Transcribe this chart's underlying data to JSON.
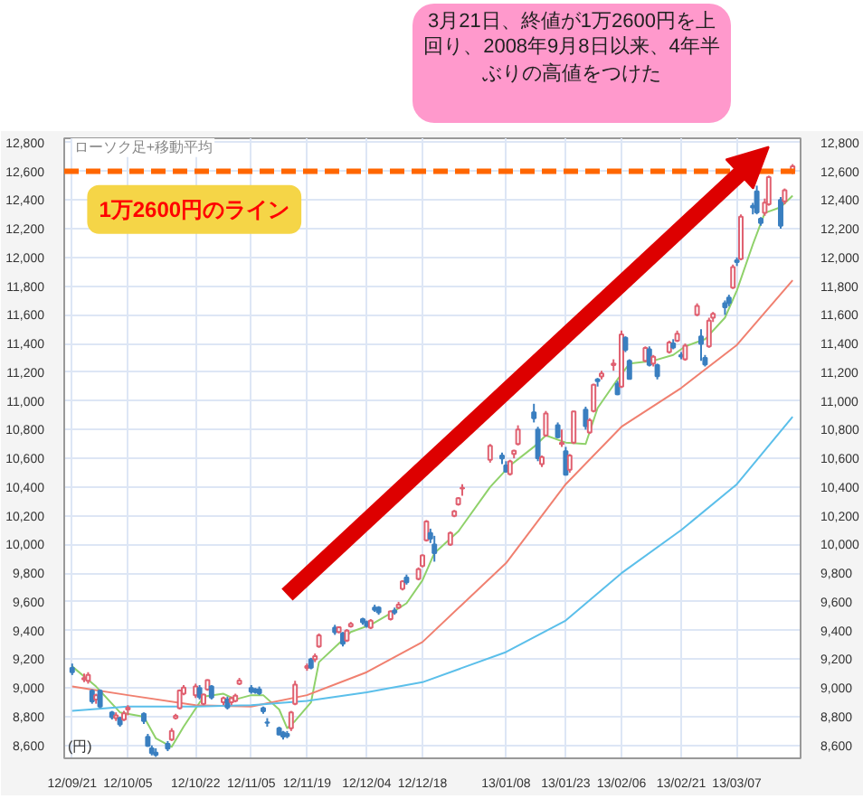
{
  "chart_data": {
    "type": "candlestick",
    "ylabel": "(円)",
    "annotations": [
      "ローソク足+移動平均",
      "3月21日、終値が1万2600円を上回り、2008年9月8日以来、4年半ぶりの高値をつけた"
    ],
    "x": [
      "2012-09-21",
      "2012-09-24",
      "2012-09-25",
      "2012-09-26",
      "2012-09-27",
      "2012-09-28",
      "2012-10-01",
      "2012-10-02",
      "2012-10-03",
      "2012-10-04",
      "2012-10-05",
      "2012-10-09",
      "2012-10-10",
      "2012-10-11",
      "2012-10-12",
      "2012-10-15",
      "2012-10-16",
      "2012-10-17",
      "2012-10-18",
      "2012-10-19",
      "2012-10-22",
      "2012-10-23",
      "2012-10-24",
      "2012-10-25",
      "2012-10-26",
      "2012-10-29",
      "2012-10-30",
      "2012-10-31",
      "2012-11-01",
      "2012-11-02",
      "2012-11-05",
      "2012-11-06",
      "2012-11-07",
      "2012-11-08",
      "2012-11-09",
      "2012-11-12",
      "2012-11-13",
      "2012-11-14",
      "2012-11-15",
      "2012-11-16",
      "2012-11-19",
      "2012-11-20",
      "2012-11-21",
      "2012-11-22",
      "2012-11-26",
      "2012-11-27",
      "2012-11-28",
      "2012-11-29",
      "2012-11-30",
      "2012-12-03",
      "2012-12-04",
      "2012-12-05",
      "2012-12-06",
      "2012-12-07",
      "2012-12-10",
      "2012-12-11",
      "2012-12-12",
      "2012-12-13",
      "2012-12-14",
      "2012-12-17",
      "2012-12-18",
      "2012-12-19",
      "2012-12-20",
      "2012-12-21",
      "2012-12-25",
      "2012-12-26",
      "2012-12-27",
      "2012-12-28",
      "2013-01-04",
      "2013-01-07",
      "2013-01-08",
      "2013-01-09",
      "2013-01-10",
      "2013-01-11",
      "2013-01-15",
      "2013-01-16",
      "2013-01-17",
      "2013-01-18",
      "2013-01-21",
      "2013-01-22",
      "2013-01-23",
      "2013-01-24",
      "2013-01-25",
      "2013-01-28",
      "2013-01-29",
      "2013-01-30",
      "2013-01-31",
      "2013-02-01",
      "2013-02-04",
      "2013-02-05",
      "2013-02-06",
      "2013-02-07",
      "2013-02-08",
      "2013-02-12",
      "2013-02-13",
      "2013-02-14",
      "2013-02-15",
      "2013-02-18",
      "2013-02-19",
      "2013-02-20",
      "2013-02-21",
      "2013-02-22",
      "2013-02-25",
      "2013-02-26",
      "2013-02-27",
      "2013-02-28",
      "2013-03-01",
      "2013-03-04",
      "2013-03-05",
      "2013-03-06",
      "2013-03-07",
      "2013-03-08",
      "2013-03-11",
      "2013-03-12",
      "2013-03-13",
      "2013-03-14",
      "2013-03-15",
      "2013-03-18",
      "2013-03-19",
      "2013-03-21"
    ],
    "ohlc": [
      [
        9140,
        9170,
        9090,
        9110
      ],
      [
        9060,
        9100,
        9040,
        9069
      ],
      [
        9050,
        9110,
        9030,
        9091
      ],
      [
        8980,
        8990,
        8890,
        8906
      ],
      [
        8920,
        8960,
        8890,
        8949
      ],
      [
        8980,
        8990,
        8860,
        8870
      ],
      [
        8830,
        8840,
        8780,
        8797
      ],
      [
        8790,
        8830,
        8770,
        8809
      ],
      [
        8790,
        8800,
        8730,
        8746
      ],
      [
        8780,
        8840,
        8770,
        8824
      ],
      [
        8850,
        8880,
        8810,
        8863
      ],
      [
        8820,
        8830,
        8750,
        8769
      ],
      [
        8660,
        8680,
        8590,
        8596
      ],
      [
        8580,
        8600,
        8530,
        8546
      ],
      [
        8550,
        8580,
        8520,
        8534
      ],
      [
        8610,
        8630,
        8560,
        8577
      ],
      [
        8640,
        8720,
        8630,
        8701
      ],
      [
        8790,
        8820,
        8780,
        8806
      ],
      [
        8860,
        8990,
        8850,
        8982
      ],
      [
        8960,
        9020,
        8950,
        9002
      ],
      [
        8950,
        9030,
        8930,
        9010
      ],
      [
        9000,
        9020,
        8920,
        8936
      ],
      [
        8890,
        8960,
        8880,
        8954
      ],
      [
        8990,
        9060,
        8980,
        9055
      ],
      [
        9010,
        9020,
        8920,
        8933
      ],
      [
        8900,
        8940,
        8880,
        8929
      ],
      [
        8920,
        8940,
        8850,
        8865
      ],
      [
        8900,
        8940,
        8880,
        8928
      ],
      [
        8910,
        8960,
        8900,
        8946
      ],
      [
        9030,
        9070,
        9020,
        9051
      ],
      [
        9000,
        9020,
        8960,
        8975
      ],
      [
        8990,
        9000,
        8960,
        8972
      ],
      [
        8990,
        9010,
        8950,
        8964
      ],
      [
        8860,
        8870,
        8820,
        8837
      ],
      [
        8760,
        8790,
        8730,
        8757
      ],
      [
        8720,
        8730,
        8670,
        8676
      ],
      [
        8690,
        8700,
        8640,
        8661
      ],
      [
        8680,
        8700,
        8650,
        8664
      ],
      [
        8720,
        8840,
        8700,
        8829
      ],
      [
        8890,
        9050,
        8880,
        9024
      ],
      [
        9140,
        9170,
        9120,
        9153
      ],
      [
        9200,
        9210,
        9130,
        9142
      ],
      [
        9200,
        9240,
        9180,
        9222
      ],
      [
        9290,
        9380,
        9280,
        9366
      ],
      [
        9420,
        9440,
        9370,
        9388
      ],
      [
        9390,
        9430,
        9380,
        9423
      ],
      [
        9380,
        9390,
        9290,
        9308
      ],
      [
        9330,
        9410,
        9320,
        9400
      ],
      [
        9430,
        9460,
        9420,
        9446
      ],
      [
        9480,
        9490,
        9440,
        9458
      ],
      [
        9460,
        9470,
        9420,
        9432
      ],
      [
        9420,
        9480,
        9410,
        9468
      ],
      [
        9560,
        9580,
        9530,
        9545
      ],
      [
        9560,
        9570,
        9510,
        9527
      ],
      [
        9480,
        9540,
        9470,
        9533
      ],
      [
        9540,
        9560,
        9510,
        9525
      ],
      [
        9560,
        9600,
        9550,
        9581
      ],
      [
        9690,
        9750,
        9680,
        9742
      ],
      [
        9770,
        9790,
        9720,
        9737
      ],
      [
        9760,
        9840,
        9750,
        9828
      ],
      [
        9850,
        9930,
        9840,
        9923
      ],
      [
        10030,
        10170,
        10020,
        10160
      ],
      [
        10080,
        10110,
        10010,
        10040
      ],
      [
        10000,
        10060,
        9880,
        9940
      ],
      [
        10000,
        10090,
        9990,
        10080
      ],
      [
        10200,
        10240,
        10190,
        10230
      ],
      [
        10280,
        10330,
        10270,
        10322
      ],
      [
        10390,
        10420,
        10340,
        10395
      ],
      [
        10590,
        10700,
        10570,
        10688
      ],
      [
        10620,
        10640,
        10560,
        10599
      ],
      [
        10550,
        10580,
        10500,
        10508
      ],
      [
        10490,
        10590,
        10480,
        10578
      ],
      [
        10630,
        10660,
        10600,
        10652
      ],
      [
        10700,
        10830,
        10690,
        10801
      ],
      [
        10920,
        10980,
        10850,
        10879
      ],
      [
        10800,
        10820,
        10580,
        10600
      ],
      [
        10560,
        10620,
        10540,
        10609
      ],
      [
        10760,
        10930,
        10750,
        10913
      ],
      [
        10830,
        10850,
        10740,
        10747
      ],
      [
        10700,
        10800,
        10680,
        10709
      ],
      [
        10650,
        10680,
        10480,
        10486
      ],
      [
        10520,
        10630,
        10500,
        10620
      ],
      [
        10710,
        10930,
        10700,
        10926
      ],
      [
        10940,
        10960,
        10800,
        10824
      ],
      [
        10780,
        10880,
        10770,
        10866
      ],
      [
        10930,
        11120,
        10920,
        11113
      ],
      [
        11150,
        11160,
        11100,
        11138
      ],
      [
        11170,
        11210,
        11150,
        11191
      ],
      [
        11250,
        11290,
        11210,
        11260
      ],
      [
        11120,
        11140,
        11040,
        11046
      ],
      [
        11100,
        11490,
        11090,
        11463
      ],
      [
        11440,
        11450,
        11340,
        11357
      ],
      [
        11280,
        11290,
        11150,
        11153
      ],
      [
        11280,
        11380,
        11270,
        11369
      ],
      [
        11360,
        11380,
        11240,
        11251
      ],
      [
        11260,
        11320,
        11240,
        11307
      ],
      [
        11250,
        11260,
        11150,
        11173
      ],
      [
        11340,
        11420,
        11330,
        11407
      ],
      [
        11400,
        11430,
        11360,
        11372
      ],
      [
        11420,
        11490,
        11410,
        11468
      ],
      [
        11320,
        11340,
        11290,
        11309
      ],
      [
        11290,
        11400,
        11280,
        11385
      ],
      [
        11600,
        11680,
        11590,
        11662
      ],
      [
        11450,
        11500,
        11280,
        11398
      ],
      [
        11300,
        11320,
        11240,
        11254
      ],
      [
        11380,
        11580,
        11370,
        11559
      ],
      [
        11580,
        11620,
        11550,
        11606
      ],
      [
        11680,
        11700,
        11600,
        11652
      ],
      [
        11720,
        11740,
        11660,
        11683
      ],
      [
        11790,
        11950,
        11780,
        11932
      ],
      [
        11980,
        12000,
        11940,
        11968
      ],
      [
        11990,
        12300,
        11980,
        12283
      ],
      [
        12360,
        12380,
        12300,
        12349
      ],
      [
        12460,
        12500,
        12300,
        12314
      ],
      [
        12270,
        12280,
        12220,
        12239
      ],
      [
        12310,
        12410,
        12290,
        12381
      ],
      [
        12370,
        12570,
        12360,
        12560
      ],
      [
        12400,
        12420,
        12200,
        12220
      ],
      [
        12390,
        12480,
        12370,
        12468
      ],
      [
        12600,
        12650,
        12580,
        12635
      ]
    ],
    "series": [
      {
        "type": "line",
        "color": "#8fd16a",
        "x": [
          "2012-09-21",
          "2012-09-27",
          "2012-10-03",
          "2012-10-09",
          "2012-10-12",
          "2012-10-16",
          "2012-10-19",
          "2012-10-24",
          "2012-10-29",
          "2012-11-01",
          "2012-11-05",
          "2012-11-08",
          "2012-11-12",
          "2012-11-14",
          "2012-11-16",
          "2012-11-20",
          "2012-11-22",
          "2012-11-27",
          "2012-11-30",
          "2012-12-05",
          "2012-12-10",
          "2012-12-14",
          "2012-12-18",
          "2012-12-21",
          "2012-12-27",
          "2013-01-04",
          "2013-01-09",
          "2013-01-15",
          "2013-01-18",
          "2013-01-23",
          "2013-01-28",
          "2013-01-31",
          "2013-02-05",
          "2013-02-08",
          "2013-02-14",
          "2013-02-19",
          "2013-02-22",
          "2013-02-27",
          "2013-03-04",
          "2013-03-07",
          "2013-03-11",
          "2013-03-14",
          "2013-03-18",
          "2013-03-21"
        ],
        "values": [
          9150,
          9010,
          8830,
          8800,
          8650,
          8590,
          8730,
          8940,
          8960,
          8920,
          8950,
          8950,
          8850,
          8720,
          8770,
          8900,
          9180,
          9310,
          9390,
          9440,
          9520,
          9590,
          9750,
          9940,
          10090,
          10400,
          10550,
          10680,
          10760,
          10710,
          10700,
          10950,
          11150,
          11260,
          11280,
          11320,
          11380,
          11430,
          11580,
          11770,
          12090,
          12310,
          12350,
          12430
        ]
      },
      {
        "type": "line",
        "color": "#f08070",
        "x": [
          "2012-09-21",
          "2012-10-05",
          "2012-10-22",
          "2012-11-05",
          "2012-11-19",
          "2012-12-04",
          "2012-12-18",
          "2013-01-08",
          "2013-01-23",
          "2013-02-06",
          "2013-02-21",
          "2013-03-07",
          "2013-03-21"
        ],
        "values": [
          9010,
          8950,
          8880,
          8870,
          8950,
          9110,
          9320,
          9870,
          10420,
          10820,
          11090,
          11390,
          11840
        ]
      },
      {
        "type": "line",
        "color": "#5bbfea",
        "x": [
          "2012-09-21",
          "2012-10-05",
          "2012-10-22",
          "2012-11-05",
          "2012-11-19",
          "2012-12-04",
          "2012-12-18",
          "2013-01-08",
          "2013-01-23",
          "2013-02-06",
          "2013-02-21",
          "2013-03-07",
          "2013-03-21"
        ],
        "values": [
          8840,
          8870,
          8870,
          8880,
          8910,
          8970,
          9040,
          9250,
          9470,
          9800,
          10100,
          10420,
          10890
        ]
      }
    ],
    "ref_lines": [
      {
        "axis": "y",
        "value": 12600,
        "label": "1万2600円のライン",
        "color": "#ff6600",
        "line_style": "dashed"
      }
    ],
    "xlim": [
      "2012-09-19",
      "2013-03-23"
    ],
    "xticks": [
      {
        "value": "2012-09-21",
        "label": "12/09/21"
      },
      {
        "value": "2012-10-05",
        "label": "12/10/05"
      },
      {
        "value": "2012-10-22",
        "label": "12/10/22"
      },
      {
        "value": "2012-11-05",
        "label": "12/11/05"
      },
      {
        "value": "2012-11-19",
        "label": "12/11/19"
      },
      {
        "value": "2012-12-04",
        "label": "12/12/04"
      },
      {
        "value": "2012-12-18",
        "label": "12/12/18"
      },
      {
        "value": "2013-01-08",
        "label": "13/01/08"
      },
      {
        "value": "2013-01-23",
        "label": "13/01/23"
      },
      {
        "value": "2013-02-06",
        "label": "13/02/06"
      },
      {
        "value": "2013-02-21",
        "label": "13/02/21"
      },
      {
        "value": "2013-03-07",
        "label": "13/03/07"
      }
    ],
    "ylim": [
      8510,
      12830
    ],
    "yticks": [
      {
        "value": 8600,
        "label": "8,600"
      },
      {
        "value": 8800,
        "label": "8,800"
      },
      {
        "value": 9000,
        "label": "9,000"
      },
      {
        "value": 9200,
        "label": "9,200"
      },
      {
        "value": 9400,
        "label": "9,400"
      },
      {
        "value": 9600,
        "label": "9,600"
      },
      {
        "value": 9800,
        "label": "9,800"
      },
      {
        "value": 10000,
        "label": "10,000"
      },
      {
        "value": 10200,
        "label": "10,200"
      },
      {
        "value": 10400,
        "label": "10,400"
      },
      {
        "value": 10600,
        "label": "10,600"
      },
      {
        "value": 10800,
        "label": "10,800"
      },
      {
        "value": 11000,
        "label": "11,000"
      },
      {
        "value": 11200,
        "label": "11,200"
      },
      {
        "value": 11400,
        "label": "11,400"
      },
      {
        "value": 11600,
        "label": "11,600"
      },
      {
        "value": 11800,
        "label": "11,800"
      },
      {
        "value": 12000,
        "label": "12,000"
      },
      {
        "value": 12200,
        "label": "12,200"
      },
      {
        "value": 12400,
        "label": "12,400"
      },
      {
        "value": 12600,
        "label": "12,600"
      },
      {
        "value": 12800,
        "label": "12,800"
      }
    ],
    "y2lim": [
      8510,
      12830
    ],
    "y2ticks": [
      {
        "value": 8600,
        "label": "8,600"
      },
      {
        "value": 8800,
        "label": "8,800"
      },
      {
        "value": 9000,
        "label": "9,000"
      },
      {
        "value": 9200,
        "label": "9,200"
      },
      {
        "value": 9400,
        "label": "9,400"
      },
      {
        "value": 9600,
        "label": "9,600"
      },
      {
        "value": 9800,
        "label": "9,800"
      },
      {
        "value": 10000,
        "label": "10,000"
      },
      {
        "value": 10200,
        "label": "10,200"
      },
      {
        "value": 10400,
        "label": "10,400"
      },
      {
        "value": 10600,
        "label": "10,600"
      },
      {
        "value": 10800,
        "label": "10,800"
      },
      {
        "value": 11000,
        "label": "11,000"
      },
      {
        "value": 11200,
        "label": "11,200"
      },
      {
        "value": 11400,
        "label": "11,400"
      },
      {
        "value": 11600,
        "label": "11,600"
      },
      {
        "value": 11800,
        "label": "11,800"
      },
      {
        "value": 12000,
        "label": "12,000"
      },
      {
        "value": 12200,
        "label": "12,200"
      },
      {
        "value": 12400,
        "label": "12,400"
      },
      {
        "value": 12600,
        "label": "12,600"
      },
      {
        "value": 12800,
        "label": "12,800"
      }
    ],
    "grid": true
  }
}
